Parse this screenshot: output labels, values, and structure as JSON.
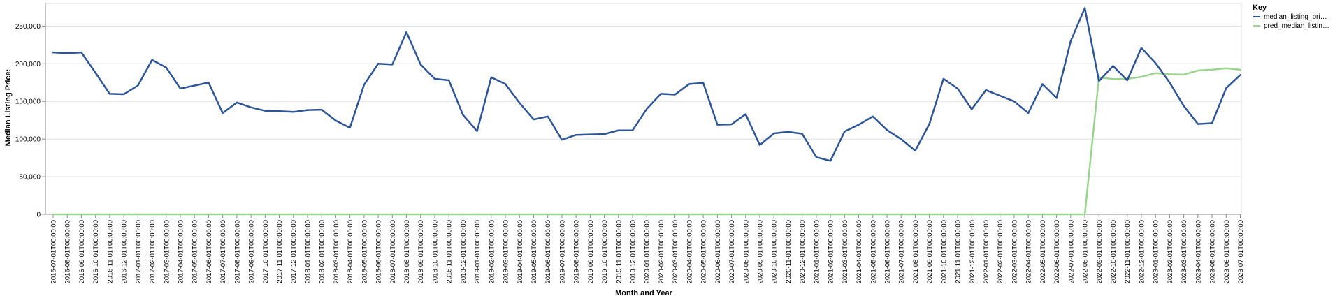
{
  "chart_data": {
    "type": "line",
    "xlabel": "Month and Year",
    "ylabel": "Median Listing Price:",
    "ylim": [
      0,
      280000
    ],
    "yticks": [
      0,
      50000,
      100000,
      150000,
      200000,
      250000
    ],
    "ytick_labels": [
      "0",
      "50,000",
      "100,000",
      "150,000",
      "200,000",
      "250,000"
    ],
    "grid": true,
    "legend_title": "Key",
    "legend_position": "top-right",
    "x": [
      "2016-07-01T00:00:00",
      "2016-08-01T00:00:00",
      "2016-09-01T00:00:00",
      "2016-10-01T00:00:00",
      "2016-11-01T00:00:00",
      "2016-12-01T00:00:00",
      "2017-01-01T00:00:00",
      "2017-02-01T00:00:00",
      "2017-03-01T00:00:00",
      "2017-04-01T00:00:00",
      "2017-05-01T00:00:00",
      "2017-06-01T00:00:00",
      "2017-07-01T00:00:00",
      "2017-08-01T00:00:00",
      "2017-09-01T00:00:00",
      "2017-10-01T00:00:00",
      "2017-11-01T00:00:00",
      "2017-12-01T00:00:00",
      "2018-01-01T00:00:00",
      "2018-02-01T00:00:00",
      "2018-03-01T00:00:00",
      "2018-04-01T00:00:00",
      "2018-05-01T00:00:00",
      "2018-06-01T00:00:00",
      "2018-07-01T00:00:00",
      "2018-08-01T00:00:00",
      "2018-09-01T00:00:00",
      "2018-10-01T00:00:00",
      "2018-11-01T00:00:00",
      "2018-12-01T00:00:00",
      "2019-01-01T00:00:00",
      "2019-02-01T00:00:00",
      "2019-03-01T00:00:00",
      "2019-04-01T00:00:00",
      "2019-05-01T00:00:00",
      "2019-06-01T00:00:00",
      "2019-07-01T00:00:00",
      "2019-08-01T00:00:00",
      "2019-09-01T00:00:00",
      "2019-10-01T00:00:00",
      "2019-11-01T00:00:00",
      "2019-12-01T00:00:00",
      "2020-01-01T00:00:00",
      "2020-02-01T00:00:00",
      "2020-03-01T00:00:00",
      "2020-04-01T00:00:00",
      "2020-05-01T00:00:00",
      "2020-06-01T00:00:00",
      "2020-07-01T00:00:00",
      "2020-08-01T00:00:00",
      "2020-09-01T00:00:00",
      "2020-10-01T00:00:00",
      "2020-11-01T00:00:00",
      "2020-12-01T00:00:00",
      "2021-01-01T00:00:00",
      "2021-02-01T00:00:00",
      "2021-03-01T00:00:00",
      "2021-04-01T00:00:00",
      "2021-05-01T00:00:00",
      "2021-06-01T00:00:00",
      "2021-07-01T00:00:00",
      "2021-08-01T00:00:00",
      "2021-09-01T00:00:00",
      "2021-10-01T00:00:00",
      "2021-11-01T00:00:00",
      "2021-12-01T00:00:00",
      "2022-01-01T00:00:00",
      "2022-02-01T00:00:00",
      "2022-03-01T00:00:00",
      "2022-04-01T00:00:00",
      "2022-05-01T00:00:00",
      "2022-06-01T00:00:00",
      "2022-07-01T00:00:00",
      "2022-08-01T00:00:00",
      "2022-09-01T00:00:00",
      "2022-10-01T00:00:00",
      "2022-11-01T00:00:00",
      "2022-12-01T00:00:00",
      "2023-01-01T00:00:00",
      "2023-02-01T00:00:00",
      "2023-03-01T00:00:00",
      "2023-04-01T00:00:00",
      "2023-05-01T00:00:00",
      "2023-06-01T00:00:00",
      "2023-07-01T00:00:00"
    ],
    "series": [
      {
        "name": "median_listing_pri…",
        "color": "#2d5597",
        "values": [
          215000,
          214000,
          215000,
          188000,
          160000,
          159500,
          171000,
          205000,
          195000,
          167000,
          171000,
          175000,
          134500,
          148500,
          142000,
          137500,
          137000,
          136000,
          138500,
          139000,
          124500,
          115000,
          172000,
          200000,
          199000,
          242000,
          199000,
          180000,
          178000,
          132000,
          110500,
          182000,
          173000,
          148000,
          126000,
          130000,
          99000,
          105500,
          106000,
          106500,
          111500,
          111500,
          140000,
          160000,
          159000,
          173000,
          174500,
          119000,
          119500,
          133000,
          92000,
          107500,
          109500,
          107000,
          76000,
          71000,
          110000,
          119000,
          130000,
          112000,
          100000,
          84500,
          120000,
          180000,
          167000,
          139500,
          165000,
          157500,
          150000,
          134500,
          173000,
          154500,
          230000,
          274000,
          177000,
          197000,
          178000,
          221000,
          201000,
          175000,
          144000,
          120000,
          121000,
          167500,
          185000
        ]
      },
      {
        "name": "pred_median_listin…",
        "color": "#9ad48f",
        "values": [
          0,
          0,
          0,
          0,
          0,
          0,
          0,
          0,
          0,
          0,
          0,
          0,
          0,
          0,
          0,
          0,
          0,
          0,
          0,
          0,
          0,
          0,
          0,
          0,
          0,
          0,
          0,
          0,
          0,
          0,
          0,
          0,
          0,
          0,
          0,
          0,
          0,
          0,
          0,
          0,
          0,
          0,
          0,
          0,
          0,
          0,
          0,
          0,
          0,
          0,
          0,
          0,
          0,
          0,
          0,
          0,
          0,
          0,
          0,
          0,
          0,
          0,
          0,
          0,
          0,
          0,
          0,
          0,
          0,
          0,
          0,
          0,
          0,
          0,
          182000,
          179500,
          180000,
          182500,
          187500,
          186000,
          185500,
          191000,
          192000,
          194000,
          192000
        ]
      }
    ]
  }
}
